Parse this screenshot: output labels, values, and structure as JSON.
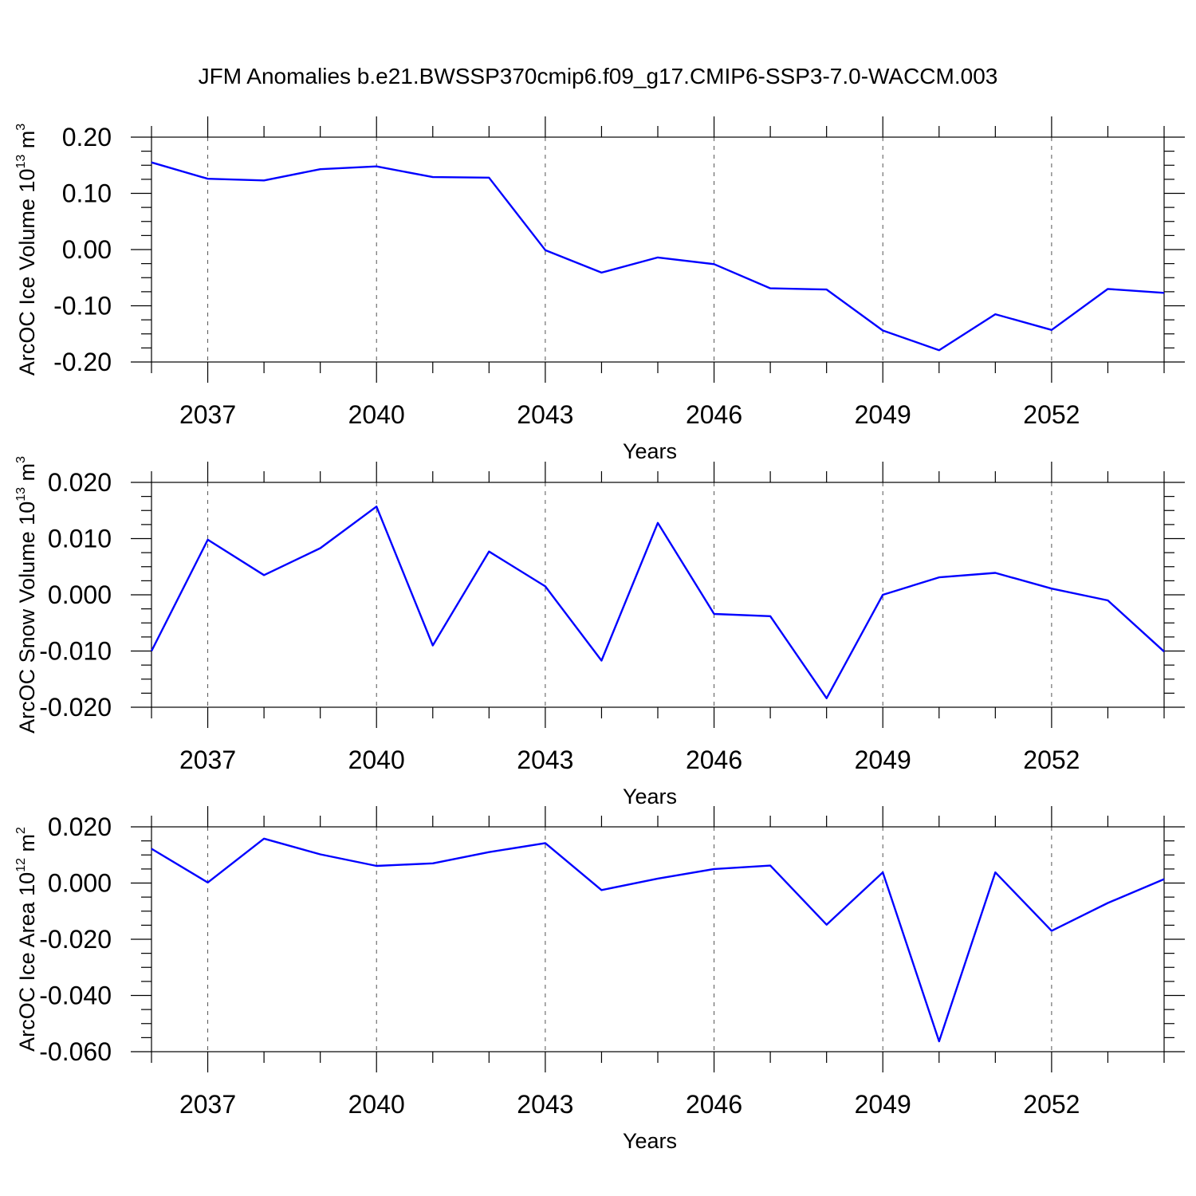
{
  "title": "JFM Anomalies b.e21.BWSSP370cmip6.f09_g17.CMIP6-SSP3-7.0-WACCM.003",
  "line_color": "#0000ff",
  "chart_data": [
    {
      "type": "line",
      "ylabel_text": "ArcOC Ice Volume 10",
      "ylabel_exp": "13",
      "ylabel_unit": "m",
      "ylabel_unit_exp": "3",
      "xlabel": "Years",
      "x_ticks": [
        2037,
        2040,
        2043,
        2046,
        2049,
        2052
      ],
      "x_tick_labels": [
        "2037",
        "2040",
        "2043",
        "2046",
        "2049",
        "2052"
      ],
      "xlim": [
        2036,
        2054
      ],
      "y_ticks": [
        0.2,
        0.1,
        0.0,
        -0.1,
        -0.2
      ],
      "y_tick_labels": [
        "0.20",
        "0.10",
        "0.00",
        "-0.10",
        "-0.20"
      ],
      "ylim": [
        -0.2,
        0.2
      ],
      "y_minor_step": 0.025,
      "grid": "vertical dashed at major x ticks",
      "x": [
        2036,
        2037,
        2038,
        2039,
        2040,
        2041,
        2042,
        2043,
        2044,
        2045,
        2046,
        2047,
        2048,
        2049,
        2050,
        2051,
        2052,
        2053,
        2054
      ],
      "values": [
        0.155,
        0.126,
        0.123,
        0.143,
        0.148,
        0.129,
        0.128,
        -0.001,
        -0.041,
        -0.014,
        -0.026,
        -0.069,
        -0.071,
        -0.144,
        -0.179,
        -0.115,
        -0.143,
        -0.07,
        -0.077
      ]
    },
    {
      "type": "line",
      "ylabel_text": "ArcOC Snow Volume 10",
      "ylabel_exp": "13",
      "ylabel_unit": "m",
      "ylabel_unit_exp": "3",
      "xlabel": "Years",
      "x_ticks": [
        2037,
        2040,
        2043,
        2046,
        2049,
        2052
      ],
      "x_tick_labels": [
        "2037",
        "2040",
        "2043",
        "2046",
        "2049",
        "2052"
      ],
      "xlim": [
        2036,
        2054
      ],
      "y_ticks": [
        0.02,
        0.01,
        0.0,
        -0.01,
        -0.02
      ],
      "y_tick_labels": [
        "0.020",
        "0.010",
        "0.000",
        "-0.010",
        "-0.020"
      ],
      "ylim": [
        -0.02,
        0.02
      ],
      "y_minor_step": 0.0025,
      "grid": "vertical dashed at major x ticks",
      "x": [
        2036,
        2037,
        2038,
        2039,
        2040,
        2041,
        2042,
        2043,
        2044,
        2045,
        2046,
        2047,
        2048,
        2049,
        2050,
        2051,
        2052,
        2053,
        2054
      ],
      "values": [
        -0.01,
        0.0098,
        0.0035,
        0.0083,
        0.0157,
        -0.009,
        0.0077,
        0.0015,
        -0.0117,
        0.0128,
        -0.0034,
        -0.0038,
        -0.0184,
        0.0,
        0.0031,
        0.0039,
        0.0011,
        -0.001,
        -0.0101
      ]
    },
    {
      "type": "line",
      "ylabel_text": "ArcOC Ice Area 10",
      "ylabel_exp": "12",
      "ylabel_unit": "m",
      "ylabel_unit_exp": "2",
      "xlabel": "Years",
      "x_ticks": [
        2037,
        2040,
        2043,
        2046,
        2049,
        2052
      ],
      "x_tick_labels": [
        "2037",
        "2040",
        "2043",
        "2046",
        "2049",
        "2052"
      ],
      "xlim": [
        2036,
        2054
      ],
      "y_ticks": [
        0.02,
        0.0,
        -0.02,
        -0.04,
        -0.06
      ],
      "y_tick_labels": [
        "0.020",
        "0.000",
        "-0.020",
        "-0.040",
        "-0.060"
      ],
      "ylim": [
        -0.06,
        0.02
      ],
      "y_minor_step": 0.005,
      "grid": "vertical dashed at major x ticks",
      "x": [
        2036,
        2037,
        2038,
        2039,
        2040,
        2041,
        2042,
        2043,
        2044,
        2045,
        2046,
        2047,
        2048,
        2049,
        2050,
        2051,
        2052,
        2053,
        2054
      ],
      "values": [
        0.0122,
        0.0002,
        0.0158,
        0.0102,
        0.0061,
        0.007,
        0.011,
        0.0142,
        -0.0025,
        0.0016,
        0.005,
        0.0062,
        -0.0148,
        0.0038,
        -0.0563,
        0.0038,
        -0.017,
        -0.0071,
        0.0014
      ]
    }
  ]
}
